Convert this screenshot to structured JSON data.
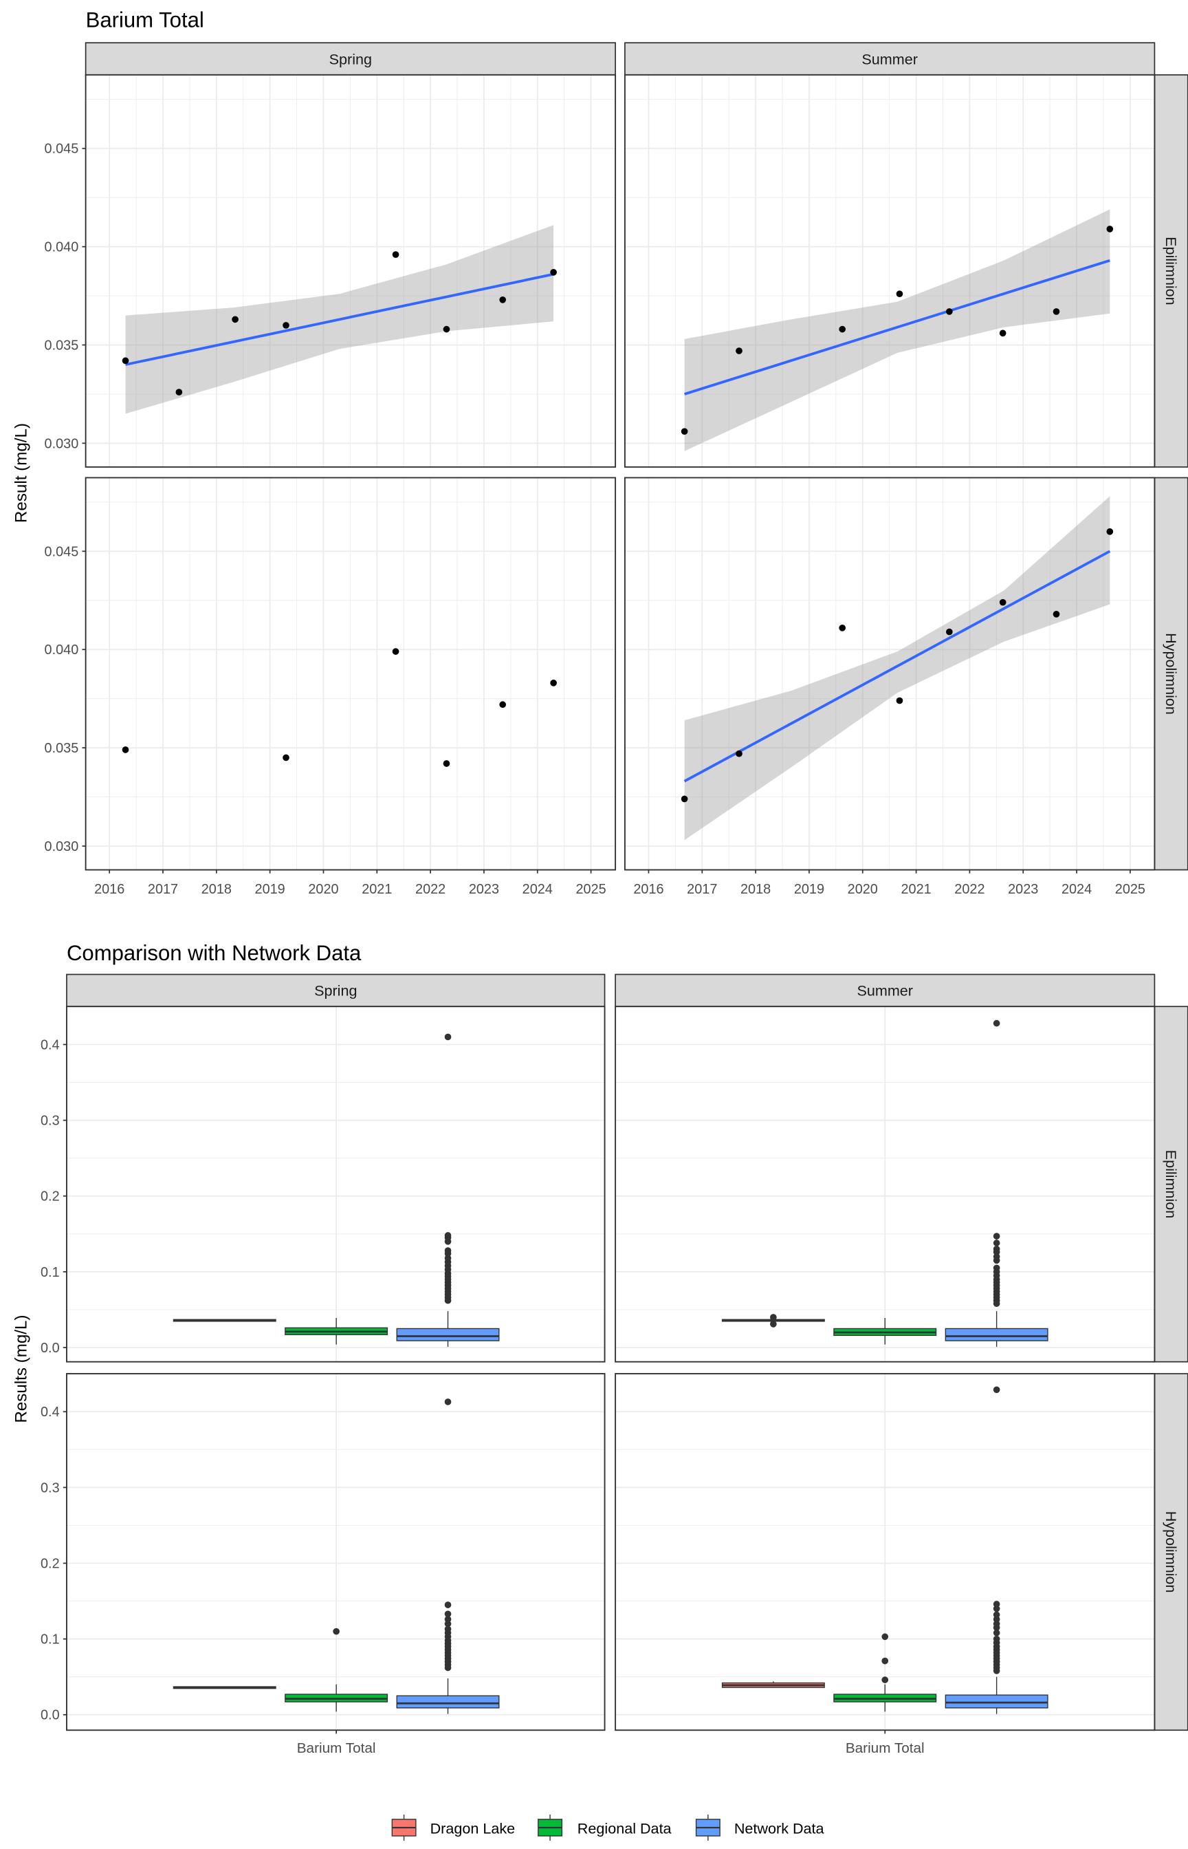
{
  "colors": {
    "trend": "#3366FF",
    "ribbon": "#999999",
    "strip": "#D9D9D9",
    "grid": "#EBEBEB",
    "border": "#333333",
    "dragon": "#F8766D",
    "regional": "#00BA38",
    "network": "#619CFF"
  },
  "chart_data": [
    {
      "type": "scatter",
      "title": "Barium Total",
      "ylabel": "Result (mg/L)",
      "xlabel": "",
      "columns": [
        "Spring",
        "Summer"
      ],
      "rows": [
        "Epilimnion",
        "Hypolimnion"
      ],
      "x_ticks": [
        "2016",
        "2017",
        "2018",
        "2019",
        "2020",
        "2021",
        "2022",
        "2023",
        "2024",
        "2025"
      ],
      "y_ticks": [
        "0.030",
        "0.035",
        "0.040",
        "0.045"
      ],
      "ylim": [
        0.0285,
        0.0485
      ],
      "grid": true,
      "panels": [
        {
          "column": "Spring",
          "row": "Epilimnion",
          "points": [
            [
              2016.3,
              0.0342
            ],
            [
              2017.3,
              0.0326
            ],
            [
              2018.35,
              0.0363
            ],
            [
              2019.3,
              0.036
            ],
            [
              2021.35,
              0.0396
            ],
            [
              2022.3,
              0.0358
            ],
            [
              2023.35,
              0.0373
            ],
            [
              2024.3,
              0.0387
            ]
          ],
          "trend": {
            "x": [
              2016.3,
              2024.3
            ],
            "y": [
              0.034,
              0.0386
            ]
          },
          "ribbon": [
            [
              2016.3,
              0.0315,
              0.0365
            ],
            [
              2018.3,
              0.0331,
              0.0369
            ],
            [
              2020.3,
              0.0348,
              0.0376
            ],
            [
              2022.3,
              0.0357,
              0.0391
            ],
            [
              2024.3,
              0.0362,
              0.0411
            ]
          ]
        },
        {
          "column": "Summer",
          "row": "Epilimnion",
          "points": [
            [
              2016.67,
              0.0306
            ],
            [
              2017.69,
              0.0347
            ],
            [
              2019.62,
              0.0358
            ],
            [
              2020.69,
              0.0376
            ],
            [
              2021.62,
              0.0367
            ],
            [
              2022.62,
              0.0356
            ],
            [
              2023.62,
              0.0367
            ],
            [
              2024.62,
              0.0409
            ]
          ],
          "trend": {
            "x": [
              2016.67,
              2024.62
            ],
            "y": [
              0.0325,
              0.0393
            ]
          },
          "ribbon": [
            [
              2016.67,
              0.0296,
              0.0353
            ],
            [
              2018.66,
              0.0321,
              0.0363
            ],
            [
              2020.65,
              0.0346,
              0.0372
            ],
            [
              2022.64,
              0.0359,
              0.0393
            ],
            [
              2024.62,
              0.0366,
              0.0419
            ]
          ]
        },
        {
          "column": "Spring",
          "row": "Hypolimnion",
          "points": [
            [
              2016.3,
              0.0349
            ],
            [
              2019.3,
              0.0345
            ],
            [
              2021.35,
              0.0399
            ],
            [
              2022.3,
              0.0342
            ],
            [
              2023.35,
              0.0372
            ],
            [
              2024.3,
              0.0383
            ]
          ]
        },
        {
          "column": "Summer",
          "row": "Hypolimnion",
          "points": [
            [
              2016.67,
              0.0324
            ],
            [
              2017.69,
              0.0347
            ],
            [
              2019.62,
              0.0411
            ],
            [
              2020.69,
              0.0374
            ],
            [
              2021.62,
              0.0409
            ],
            [
              2022.62,
              0.0424
            ],
            [
              2023.62,
              0.0418
            ],
            [
              2024.62,
              0.046
            ]
          ],
          "trend": {
            "x": [
              2016.67,
              2024.62
            ],
            "y": [
              0.0333,
              0.045
            ]
          },
          "ribbon": [
            [
              2016.67,
              0.0303,
              0.0364
            ],
            [
              2018.66,
              0.034,
              0.0379
            ],
            [
              2020.65,
              0.0378,
              0.0399
            ],
            [
              2022.64,
              0.0404,
              0.043
            ],
            [
              2024.62,
              0.0423,
              0.0478
            ]
          ]
        }
      ]
    },
    {
      "type": "box",
      "title": "Comparison with Network Data",
      "ylabel": "Results (mg/L)",
      "xlabel": "",
      "categories": [
        "Barium Total"
      ],
      "columns": [
        "Spring",
        "Summer"
      ],
      "rows": [
        "Epilimnion",
        "Hypolimnion"
      ],
      "y_ticks": [
        "0.0",
        "0.1",
        "0.2",
        "0.3",
        "0.4"
      ],
      "ylim": [
        -0.015,
        0.455
      ],
      "grid": true,
      "legend": {
        "position": "bottom",
        "entries": [
          "Dragon Lake",
          "Regional Data",
          "Network Data"
        ]
      },
      "panels": [
        {
          "column": "Spring",
          "row": "Epilimnion",
          "boxes": [
            {
              "group": "Dragon Lake",
              "min": 0.035,
              "q1": 0.035,
              "median": 0.036,
              "q3": 0.037,
              "max": 0.037,
              "outliers": []
            },
            {
              "group": "Regional Data",
              "min": 0.004,
              "q1": 0.017,
              "median": 0.021,
              "q3": 0.026,
              "max": 0.039,
              "outliers": []
            },
            {
              "group": "Network Data",
              "min": 0.001,
              "q1": 0.009,
              "median": 0.015,
              "q3": 0.025,
              "max": 0.048,
              "outliers": [
                0.062,
                0.066,
                0.07,
                0.074,
                0.078,
                0.082,
                0.086,
                0.09,
                0.094,
                0.098,
                0.103,
                0.108,
                0.113,
                0.118,
                0.124,
                0.128,
                0.14,
                0.145,
                0.148,
                0.41
              ]
            }
          ]
        },
        {
          "column": "Summer",
          "row": "Epilimnion",
          "boxes": [
            {
              "group": "Dragon Lake",
              "min": 0.035,
              "q1": 0.035,
              "median": 0.036,
              "q3": 0.037,
              "max": 0.037,
              "outliers": [
                0.031,
                0.04
              ]
            },
            {
              "group": "Regional Data",
              "min": 0.004,
              "q1": 0.016,
              "median": 0.02,
              "q3": 0.025,
              "max": 0.039,
              "outliers": []
            },
            {
              "group": "Network Data",
              "min": 0.001,
              "q1": 0.009,
              "median": 0.015,
              "q3": 0.025,
              "max": 0.048,
              "outliers": [
                0.058,
                0.062,
                0.066,
                0.07,
                0.074,
                0.078,
                0.082,
                0.086,
                0.09,
                0.095,
                0.1,
                0.105,
                0.115,
                0.12,
                0.126,
                0.13,
                0.138,
                0.147,
                0.428
              ]
            }
          ]
        },
        {
          "column": "Spring",
          "row": "Hypolimnion",
          "boxes": [
            {
              "group": "Dragon Lake",
              "min": 0.035,
              "q1": 0.035,
              "median": 0.036,
              "q3": 0.037,
              "max": 0.037,
              "outliers": []
            },
            {
              "group": "Regional Data",
              "min": 0.004,
              "q1": 0.017,
              "median": 0.021,
              "q3": 0.027,
              "max": 0.04,
              "outliers": [
                0.11
              ]
            },
            {
              "group": "Network Data",
              "min": 0.001,
              "q1": 0.009,
              "median": 0.015,
              "q3": 0.025,
              "max": 0.048,
              "outliers": [
                0.062,
                0.066,
                0.07,
                0.074,
                0.078,
                0.082,
                0.086,
                0.09,
                0.094,
                0.098,
                0.103,
                0.108,
                0.113,
                0.12,
                0.126,
                0.133,
                0.145,
                0.413
              ]
            }
          ]
        },
        {
          "column": "Summer",
          "row": "Hypolimnion",
          "boxes": [
            {
              "group": "Dragon Lake",
              "min": 0.036,
              "q1": 0.036,
              "median": 0.039,
              "q3": 0.042,
              "max": 0.044,
              "outliers": []
            },
            {
              "group": "Regional Data",
              "min": 0.004,
              "q1": 0.017,
              "median": 0.021,
              "q3": 0.027,
              "max": 0.04,
              "outliers": [
                0.046,
                0.071,
                0.103
              ]
            },
            {
              "group": "Network Data",
              "min": 0.001,
              "q1": 0.009,
              "median": 0.016,
              "q3": 0.026,
              "max": 0.05,
              "outliers": [
                0.058,
                0.062,
                0.066,
                0.07,
                0.074,
                0.078,
                0.082,
                0.086,
                0.09,
                0.095,
                0.1,
                0.108,
                0.115,
                0.12,
                0.126,
                0.132,
                0.14,
                0.146,
                0.429
              ]
            }
          ]
        }
      ]
    }
  ]
}
